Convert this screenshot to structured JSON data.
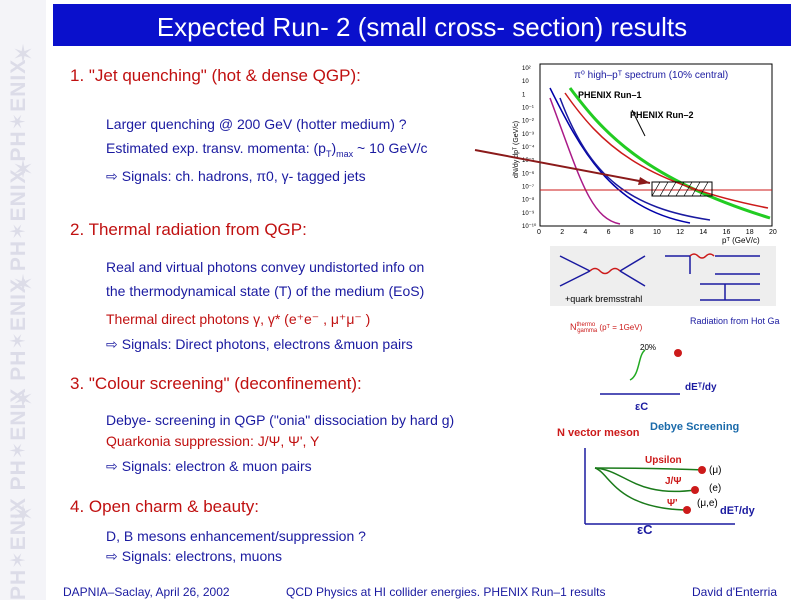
{
  "sidebar": {
    "strip_text": "PH✶ENIX PH✶ENIX PH✶ENIX PH✶ENIX PH✶ENIX"
  },
  "title": "Expected Run- 2 (small cross- section) results",
  "sections": [
    {
      "heading": "1. \"Jet quenching\" (hot & dense QGP):",
      "line1": "Larger quenching @ 200 GeV (hotter medium) ?",
      "line2": "Estimated exp. transv. momenta: (p",
      "line2_sub1": "T",
      "line2_mid": ")",
      "line2_sub2": "max",
      "line2_end": " ~ 10 GeV/c",
      "signals": "Signals: ch. hadrons, π0,  γ- tagged jets"
    },
    {
      "heading": "2. Thermal radiation from QGP:",
      "line1": "Real and virtual photons convey undistorted info on",
      "line2": "the thermodynamical state (T) of the medium (EoS)",
      "line3": "Thermal direct photons γ, γ* (e⁺e⁻ , μ⁺μ⁻  )",
      "signals": "Signals: Direct photons, electrons &muon pairs"
    },
    {
      "heading": "3. \"Colour screening\" (deconfinement):",
      "line1": "Debye- screening in QGP (\"onia\" dissociation by hard g)",
      "line2": "Quarkonia suppression: J/Ψ, Ψ', Υ",
      "signals": "Signals: electron & muon pairs"
    },
    {
      "heading": "4. Open charm & beauty:",
      "line1": "D, B mesons enhancement/suppression ?",
      "signals": "Signals: electrons, muons"
    }
  ],
  "plot1": {
    "legend": "π⁰ high–pᵀ spectrum (10% central)",
    "label_run1": "PHENIX Run–1",
    "label_run2": "PHENIX Run–2",
    "ylabel": "dN/dy dpᵀ (GeV/c)",
    "xlabel": "pᵀ (GeV/c)",
    "xticks": [
      "0",
      "2",
      "4",
      "6",
      "8",
      "10",
      "12",
      "14",
      "16",
      "18",
      "20"
    ],
    "yticks": [
      "10²",
      "10",
      "1",
      "10⁻¹",
      "10⁻²",
      "10⁻³",
      "10⁻⁴",
      "10⁻⁵",
      "10⁻⁶",
      "10⁻⁷",
      "10⁻⁸",
      "10⁻⁹",
      "10⁻¹⁰"
    ]
  },
  "diagram2": {
    "caption": "+quark bremsstrahl",
    "thermal_label_main": "N",
    "thermal_label_sub": "gamma",
    "thermal_label_sup": "thermo",
    "thermal_label_tail": " (pᵀ = 1GeV)",
    "radiation_label": "Radiation from Hot Gas (thermal)",
    "percent": "20%",
    "xaxis": "dEᵀ/dy",
    "ec": "εC"
  },
  "diagram3": {
    "ylabel": "N vector meson",
    "debye": "Debye Screening",
    "upsilon": "Upsilon",
    "jpsi": "J/Ψ",
    "psiprime": "Ψ'",
    "mu": "(μ)",
    "e": "(e)",
    "mue": "(μ,e)",
    "xaxis": "dEᵀ/dy",
    "ec": "εC"
  },
  "footer": {
    "left": "DAPNIA–Saclay, April 26, 2002",
    "middle": "QCD Physics at HI collider energies. PHENIX Run–1 results",
    "right": "David d'Enterria"
  }
}
